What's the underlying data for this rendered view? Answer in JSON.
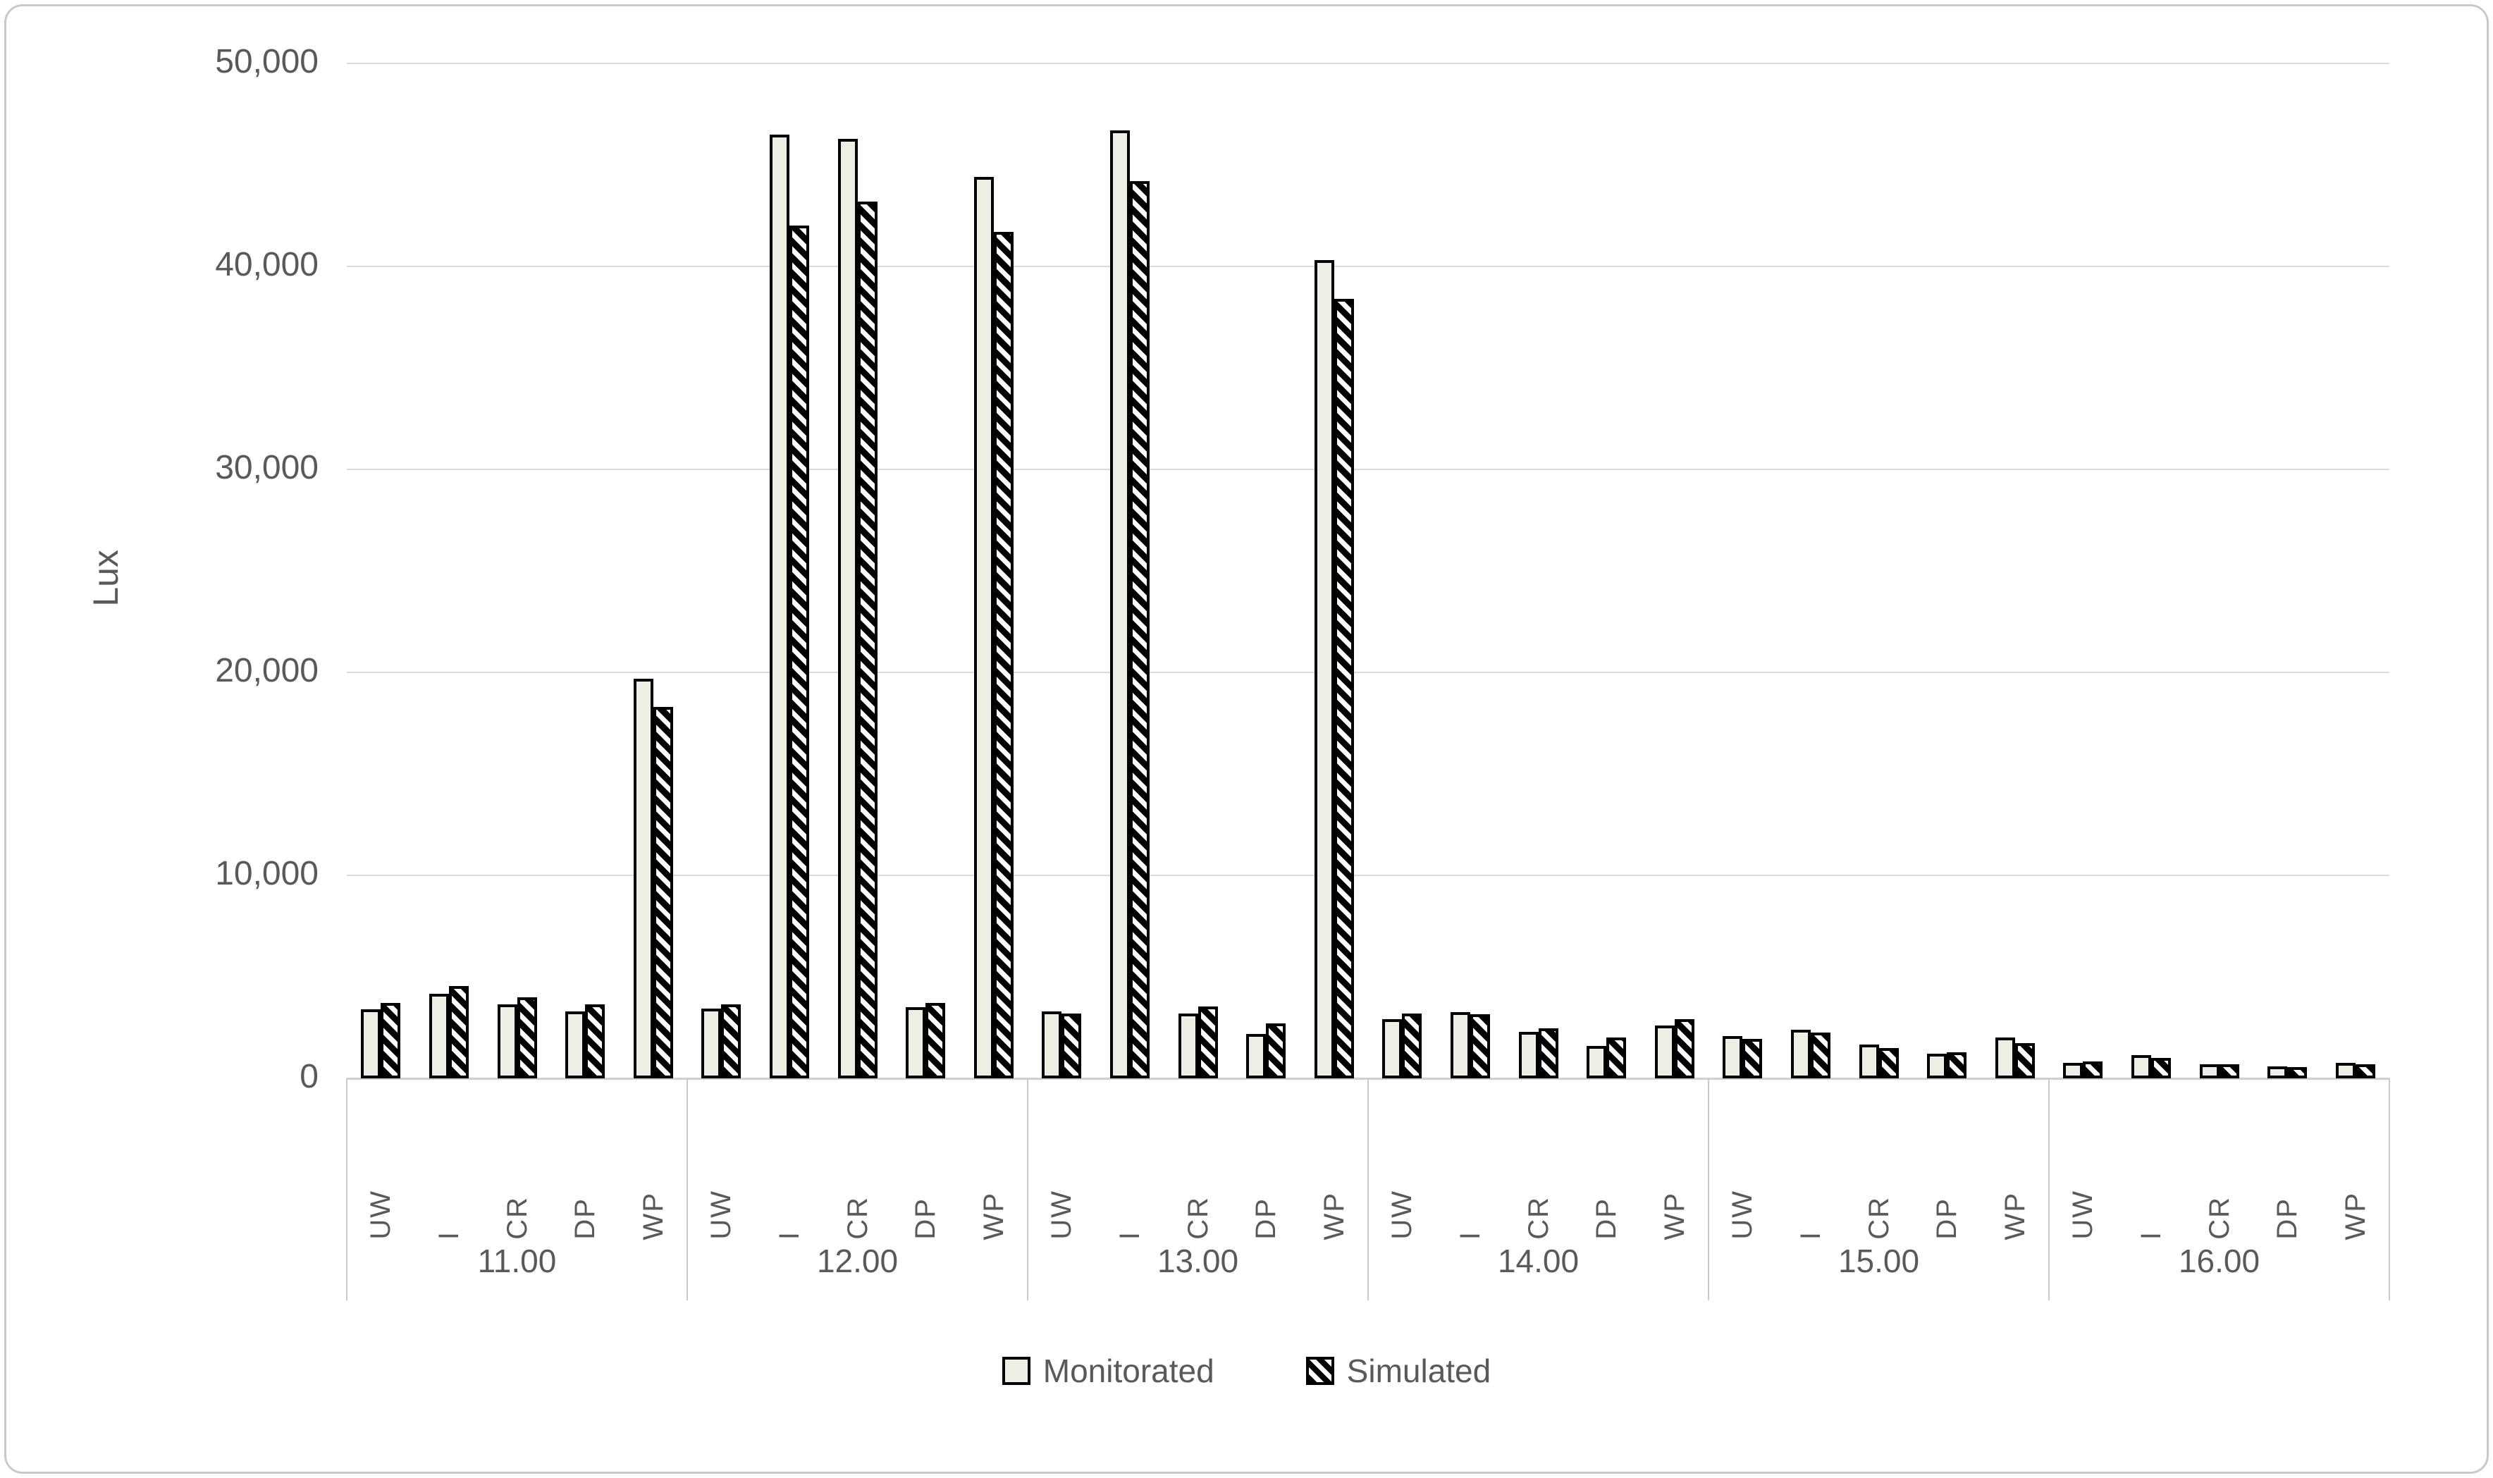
{
  "chart_data": {
    "type": "bar",
    "title": "",
    "ylabel": "Lux",
    "xlabel": "",
    "ylim": [
      0,
      50000
    ],
    "yticks": [
      0,
      10000,
      20000,
      30000,
      40000,
      50000
    ],
    "ytick_labels": [
      "0",
      "10,000",
      "20,000",
      "30,000",
      "40,000",
      "50,000"
    ],
    "grid": true,
    "legend_position": "bottom",
    "groups": [
      "11.00",
      "12.00",
      "13.00",
      "14.00",
      "15.00",
      "16.00"
    ],
    "categories": [
      "UW",
      "I",
      "CR",
      "DP",
      "WP"
    ],
    "series": [
      {
        "name": "Monitorated",
        "style": "solid",
        "fill": "#efeee4",
        "values": [
          [
            3400,
            4150,
            3650,
            3300,
            19700
          ],
          [
            3450,
            46500,
            46300,
            3500,
            44400
          ],
          [
            3300,
            46700,
            3200,
            2200,
            40300
          ],
          [
            2900,
            3250,
            2300,
            1600,
            2600
          ],
          [
            2100,
            2400,
            1650,
            1200,
            2000
          ],
          [
            750,
            1150,
            700,
            600,
            750
          ]
        ]
      },
      {
        "name": "Simulated",
        "style": "diagonal-hatch",
        "fill": "#000000",
        "hatch_color": "#ffffff",
        "values": [
          [
            3700,
            4550,
            4000,
            3650,
            18300
          ],
          [
            3650,
            42000,
            43200,
            3700,
            41700
          ],
          [
            3200,
            44200,
            3550,
            2700,
            38400
          ],
          [
            3200,
            3150,
            2450,
            2000,
            2900
          ],
          [
            1950,
            2250,
            1500,
            1300,
            1750
          ],
          [
            850,
            1000,
            680,
            550,
            700
          ]
        ]
      }
    ],
    "colors": {
      "gridline": "#d9d9d9",
      "axis_text": "#595959",
      "bar_border": "#000000",
      "frame_border": "#c9c9c9",
      "background": "#ffffff"
    }
  }
}
